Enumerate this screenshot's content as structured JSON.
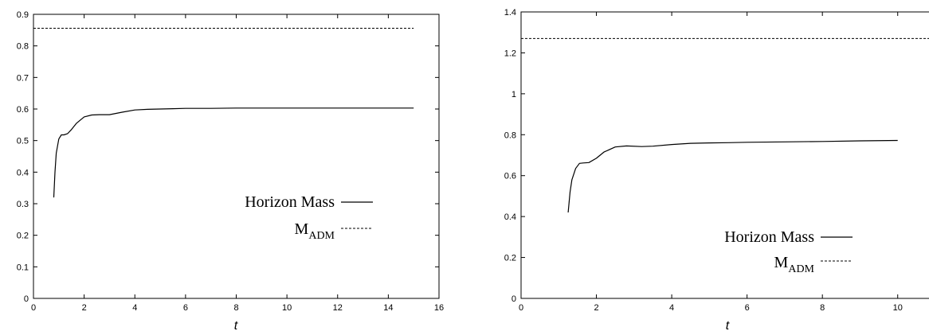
{
  "chart_data": [
    {
      "type": "line",
      "title": "",
      "xlabel": "t",
      "ylabel": "",
      "xlim": [
        0,
        16
      ],
      "ylim": [
        0,
        0.9
      ],
      "xticks": [
        "0",
        "2",
        "4",
        "6",
        "8",
        "10",
        "12",
        "14",
        "16"
      ],
      "yticks": [
        "0",
        "0.1",
        "0.2",
        "0.3",
        "0.4",
        "0.5",
        "0.6",
        "0.7",
        "0.8",
        "0.9"
      ],
      "legend_position": "bottom-right",
      "series": [
        {
          "name": "Horizon Mass",
          "style": "solid",
          "x": [
            0.8,
            0.85,
            0.9,
            1.0,
            1.1,
            1.2,
            1.35,
            1.5,
            1.7,
            2.0,
            2.3,
            2.6,
            3.0,
            3.5,
            4.0,
            4.5,
            5.0,
            5.5,
            6.0,
            7.0,
            8.0,
            10.0,
            12.0,
            14.0,
            15.0
          ],
          "y": [
            0.32,
            0.4,
            0.46,
            0.505,
            0.518,
            0.518,
            0.522,
            0.535,
            0.555,
            0.575,
            0.581,
            0.582,
            0.582,
            0.59,
            0.597,
            0.599,
            0.6,
            0.601,
            0.602,
            0.602,
            0.603,
            0.603,
            0.603,
            0.603,
            0.603
          ]
        },
        {
          "name": "M_ADM",
          "style": "dashed",
          "x": [
            0,
            15
          ],
          "y": [
            0.856,
            0.856
          ]
        }
      ],
      "legend": {
        "label1": "Horizon Mass",
        "label2_main": "M",
        "label2_sub": "ADM"
      }
    },
    {
      "type": "line",
      "title": "",
      "xlabel": "t",
      "ylabel": "",
      "xlim": [
        0,
        11
      ],
      "ylim": [
        0,
        1.4
      ],
      "xticks": [
        "0",
        "2",
        "4",
        "6",
        "8",
        "10"
      ],
      "yticks": [
        "0",
        "0.2",
        "0.4",
        "0.6",
        "0.8",
        "1",
        "1.2",
        "1.4"
      ],
      "legend_position": "bottom-right",
      "series": [
        {
          "name": "Horizon Mass",
          "style": "solid",
          "x": [
            1.25,
            1.3,
            1.35,
            1.45,
            1.55,
            1.65,
            1.8,
            2.0,
            2.2,
            2.5,
            2.8,
            3.2,
            3.5,
            4.0,
            4.5,
            5.0,
            5.5,
            6.0,
            7.0,
            8.0,
            9.0,
            10.0
          ],
          "y": [
            0.42,
            0.52,
            0.58,
            0.635,
            0.66,
            0.662,
            0.664,
            0.685,
            0.715,
            0.74,
            0.745,
            0.742,
            0.744,
            0.752,
            0.758,
            0.76,
            0.761,
            0.763,
            0.765,
            0.767,
            0.77,
            0.772
          ]
        },
        {
          "name": "M_ADM",
          "style": "dashed",
          "x": [
            0,
            11
          ],
          "y": [
            1.27,
            1.27
          ]
        }
      ],
      "legend": {
        "label1": "Horizon Mass",
        "label2_main": "M",
        "label2_sub": "ADM"
      }
    }
  ]
}
